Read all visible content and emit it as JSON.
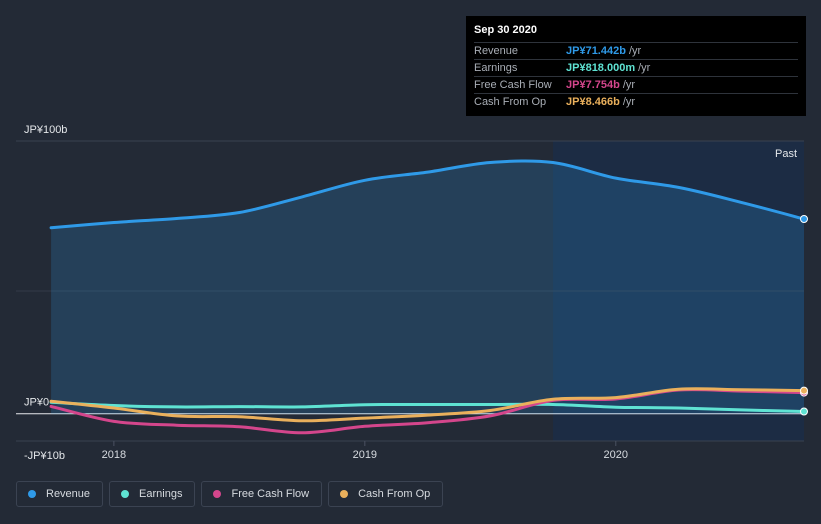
{
  "tooltip": {
    "date": "Sep 30 2020",
    "rows": [
      {
        "label": "Revenue",
        "value": "JP¥71.442b",
        "unit": "/yr",
        "color": "#2f9ae8"
      },
      {
        "label": "Earnings",
        "value": "JP¥818.000m",
        "unit": "/yr",
        "color": "#5fe3d3"
      },
      {
        "label": "Free Cash Flow",
        "value": "JP¥7.754b",
        "unit": "/yr",
        "color": "#d4468c"
      },
      {
        "label": "Cash From Op",
        "value": "JP¥8.466b",
        "unit": "/yr",
        "color": "#eab05c"
      }
    ]
  },
  "past_label": "Past",
  "legend": [
    {
      "label": "Revenue",
      "color": "#2f9ae8"
    },
    {
      "label": "Earnings",
      "color": "#5fe3d3"
    },
    {
      "label": "Free Cash Flow",
      "color": "#d4468c"
    },
    {
      "label": "Cash From Op",
      "color": "#eab05c"
    }
  ],
  "chart_data": {
    "type": "area",
    "y_unit": "JP¥b",
    "ylim": [
      -10,
      100
    ],
    "y_tick_labels": [
      {
        "value": 100,
        "label": "JP¥100b"
      },
      {
        "value": 0,
        "label": "JP¥0"
      },
      {
        "value": -10,
        "label": "-JP¥10b"
      }
    ],
    "x_tick_labels": [
      {
        "value": 2018.0,
        "label": "2018"
      },
      {
        "value": 2019.0,
        "label": "2019"
      },
      {
        "value": 2020.0,
        "label": "2020"
      }
    ],
    "xlim": [
      2017.61,
      2020.75
    ],
    "past_start": 2019.75,
    "series": [
      {
        "name": "Revenue",
        "color": "#2f9ae8",
        "fill": true,
        "points": [
          [
            2017.75,
            68.2
          ],
          [
            2018.0,
            70.1
          ],
          [
            2018.25,
            71.6
          ],
          [
            2018.5,
            73.8
          ],
          [
            2018.75,
            79.5
          ],
          [
            2019.0,
            85.6
          ],
          [
            2019.25,
            88.6
          ],
          [
            2019.5,
            92.1
          ],
          [
            2019.75,
            92.1
          ],
          [
            2020.0,
            86.4
          ],
          [
            2020.25,
            83.0
          ],
          [
            2020.5,
            77.5
          ],
          [
            2020.75,
            71.4
          ]
        ]
      },
      {
        "name": "Earnings",
        "color": "#5fe3d3",
        "fill": false,
        "points": [
          [
            2017.75,
            4.2
          ],
          [
            2018.0,
            3.0
          ],
          [
            2018.25,
            2.5
          ],
          [
            2018.5,
            2.6
          ],
          [
            2018.75,
            2.5
          ],
          [
            2019.0,
            3.3
          ],
          [
            2019.25,
            3.4
          ],
          [
            2019.5,
            3.4
          ],
          [
            2019.75,
            3.4
          ],
          [
            2020.0,
            2.4
          ],
          [
            2020.25,
            2.1
          ],
          [
            2020.5,
            1.4
          ],
          [
            2020.75,
            0.818
          ]
        ]
      },
      {
        "name": "Free Cash Flow",
        "color": "#d4468c",
        "fill": false,
        "points": [
          [
            2017.75,
            2.7
          ],
          [
            2018.0,
            -2.8
          ],
          [
            2018.25,
            -4.2
          ],
          [
            2018.5,
            -4.8
          ],
          [
            2018.75,
            -7.0
          ],
          [
            2019.0,
            -4.6
          ],
          [
            2019.25,
            -3.3
          ],
          [
            2019.5,
            -0.8
          ],
          [
            2019.75,
            4.9
          ],
          [
            2020.0,
            5.4
          ],
          [
            2020.25,
            8.7
          ],
          [
            2020.5,
            8.3
          ],
          [
            2020.75,
            7.754
          ]
        ]
      },
      {
        "name": "Cash From Op",
        "color": "#eab05c",
        "fill": false,
        "points": [
          [
            2017.75,
            4.6
          ],
          [
            2018.0,
            2.1
          ],
          [
            2018.25,
            -0.8
          ],
          [
            2018.5,
            -1.1
          ],
          [
            2018.75,
            -2.6
          ],
          [
            2019.0,
            -1.6
          ],
          [
            2019.25,
            -0.5
          ],
          [
            2019.5,
            1.2
          ],
          [
            2019.75,
            5.3
          ],
          [
            2020.0,
            5.9
          ],
          [
            2020.25,
            9.0
          ],
          [
            2020.5,
            8.8
          ],
          [
            2020.75,
            8.466
          ]
        ]
      }
    ]
  }
}
